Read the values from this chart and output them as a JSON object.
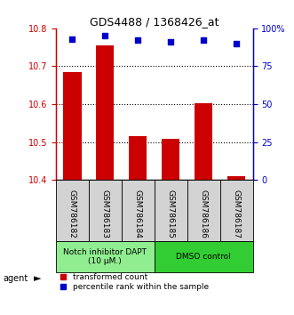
{
  "title": "GDS4488 / 1368426_at",
  "samples": [
    "GSM786182",
    "GSM786183",
    "GSM786184",
    "GSM786185",
    "GSM786186",
    "GSM786187"
  ],
  "bar_values": [
    10.685,
    10.755,
    10.515,
    10.508,
    10.602,
    10.41
  ],
  "percentile_values": [
    93,
    95,
    92,
    91,
    92,
    90
  ],
  "ylim_left": [
    10.4,
    10.8
  ],
  "ylim_right": [
    0,
    100
  ],
  "yticks_left": [
    10.4,
    10.5,
    10.6,
    10.7,
    10.8
  ],
  "ytick_labels_right": [
    "0",
    "25",
    "50",
    "75",
    "100%"
  ],
  "yticks_right": [
    0,
    25,
    50,
    75,
    100
  ],
  "bar_color": "#cc0000",
  "dot_color": "#0000cc",
  "bar_width": 0.55,
  "groups": [
    {
      "label": "Notch inhibitor DAPT\n(10 μM.)",
      "samples": [
        0,
        1,
        2
      ],
      "color": "#90ee90"
    },
    {
      "label": "DMSO control",
      "samples": [
        3,
        4,
        5
      ],
      "color": "#32cd32"
    }
  ],
  "agent_label": "agent",
  "legend_items": [
    {
      "color": "#cc0000",
      "label": "transformed count"
    },
    {
      "color": "#0000cc",
      "label": "percentile rank within the sample"
    }
  ],
  "tick_color_left": "#cc0000",
  "tick_color_right": "#0000cc",
  "sample_box_color": "#d3d3d3",
  "fig_width": 3.31,
  "fig_height": 3.54,
  "dpi": 100
}
